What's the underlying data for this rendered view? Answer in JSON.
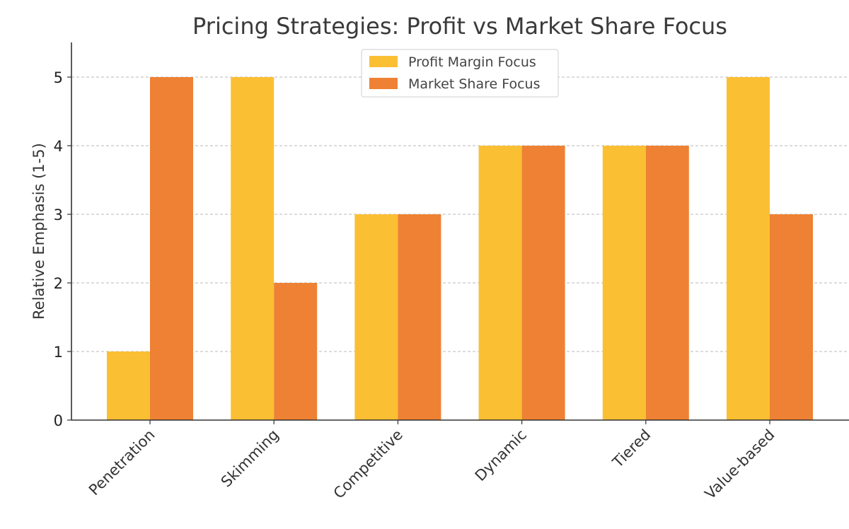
{
  "chart_data": {
    "type": "bar",
    "title": "Pricing Strategies: Profit vs Market Share Focus",
    "xlabel": "",
    "ylabel": "Relative Emphasis (1-5)",
    "ylim": [
      0,
      5.5
    ],
    "yticks": [
      "0",
      "1",
      "2",
      "3",
      "4",
      "5"
    ],
    "grid": "y-dashed",
    "legend_position": "top-center",
    "categories": [
      "Penetration",
      "Skimming",
      "Competitive",
      "Dynamic",
      "Tiered",
      "Value-based"
    ],
    "series": [
      {
        "name": "Profit Margin Focus",
        "color": "#FBBF33",
        "values": [
          1,
          5,
          3,
          4,
          4,
          5
        ]
      },
      {
        "name": "Market Share Focus",
        "color": "#EE8133",
        "values": [
          5,
          2,
          3,
          4,
          4,
          3
        ]
      }
    ]
  }
}
